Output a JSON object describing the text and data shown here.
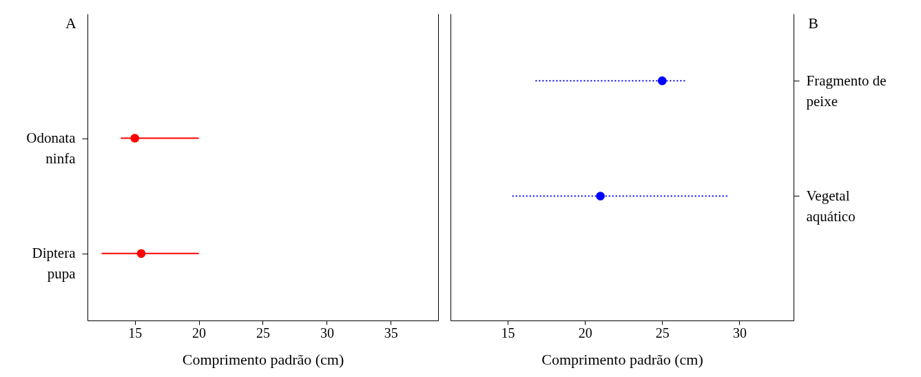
{
  "chart_data": [
    {
      "type": "scatter",
      "title": "A",
      "orientation": "horizontal",
      "xlabel": "Comprimento padrão (cm)",
      "categories": [
        "Odonata ninfa",
        "Diptera pupa"
      ],
      "xlim": [
        11.3,
        38.7
      ],
      "xticks": [
        15,
        20,
        25,
        30,
        35
      ],
      "marker": "circle",
      "line_style": "solid",
      "series": [
        {
          "color": "#ff0000",
          "values": [
            15.0,
            15.5
          ],
          "errors": [
            [
              13.9,
              20
            ],
            [
              12.4,
              20
            ]
          ]
        }
      ]
    },
    {
      "type": "scatter",
      "title": "B",
      "orientation": "horizontal",
      "xlabel": "Comprimento padrão (cm)",
      "categories": [
        "Fragmento de peixe",
        "Vegetal aquático"
      ],
      "xlim": [
        11.3,
        33.5
      ],
      "xticks": [
        15,
        20,
        25,
        30
      ],
      "marker": "circle",
      "line_style": "dotted",
      "series": [
        {
          "color": "#0000ff",
          "values": [
            25.0,
            21.0
          ],
          "errors": [
            [
              16.8,
              26.5
            ],
            [
              15.3,
              29.3
            ]
          ]
        }
      ]
    }
  ]
}
